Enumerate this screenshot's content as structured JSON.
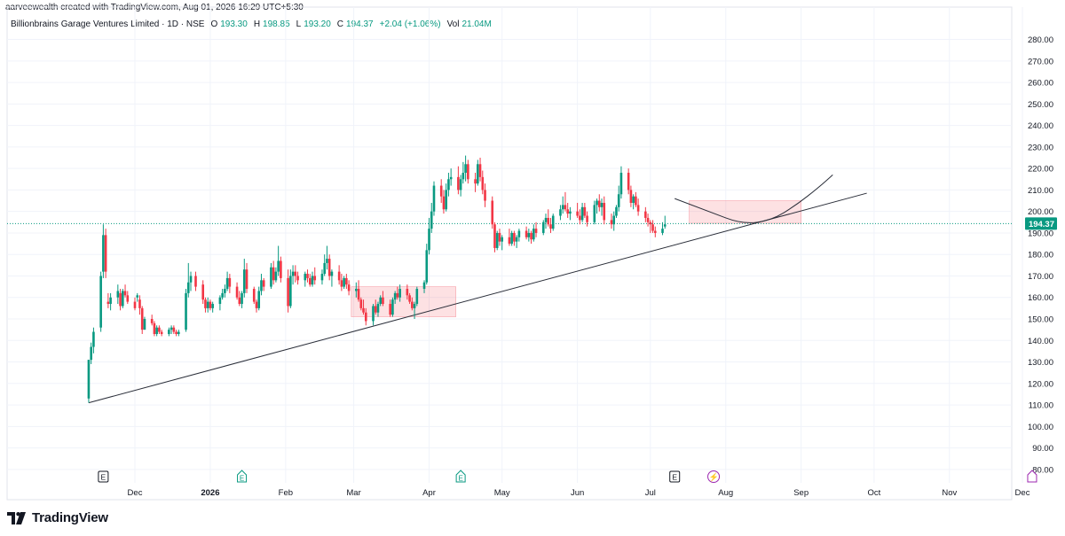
{
  "header": {
    "attribution": "aarveewealth created with TradingView.com, Aug 01, 2026 16:29 UTC+5:30"
  },
  "legend": {
    "symbol": "Billionbrains Garage Ventures Limited · 1D · NSE",
    "open_label": "O",
    "open_value": "193.30",
    "high_label": "H",
    "high_value": "198.85",
    "low_label": "L",
    "low_value": "193.20",
    "close_label": "C",
    "close_value": "194.37",
    "change": "+2.04 (+1.06%)",
    "vol_label": "Vol",
    "vol_value": "21.04M"
  },
  "brand": {
    "name": "TradingView"
  },
  "colors": {
    "up": "#089981",
    "down": "#f23645",
    "grid": "#f0f3fa",
    "zone": "rgba(242,54,69,0.15)",
    "zone_border": "#f7a1aa",
    "price_line": "#089981",
    "event": "#089981",
    "earnings": "#131722",
    "dividend": "#9c27b0"
  },
  "chart_data": {
    "type": "candlestick",
    "y_ticks": [
      "280.00",
      "270.00",
      "260.00",
      "250.00",
      "240.00",
      "230.00",
      "220.00",
      "210.00",
      "200.00",
      "190.00",
      "180.00",
      "170.00",
      "160.00",
      "150.00",
      "140.00",
      "130.00",
      "120.00",
      "110.00",
      "100.00",
      "90.00",
      "80.00"
    ],
    "ylim": [
      75,
      286
    ],
    "x_ticks": [
      {
        "label": "Dec",
        "date": "2025-12-01"
      },
      {
        "label": "2026",
        "date": "2026-01-01"
      },
      {
        "label": "Feb",
        "date": "2026-02-01"
      },
      {
        "label": "Mar",
        "date": "2026-03-01"
      },
      {
        "label": "Apr",
        "date": "2026-04-01"
      },
      {
        "label": "May",
        "date": "2026-05-01"
      },
      {
        "label": "Jun",
        "date": "2026-06-01"
      },
      {
        "label": "Jul",
        "date": "2026-07-01"
      },
      {
        "label": "Aug",
        "date": "2026-08-01"
      },
      {
        "label": "Sep",
        "date": "2026-09-01"
      },
      {
        "label": "Oct",
        "date": "2026-10-01"
      },
      {
        "label": "Nov",
        "date": "2026-11-01"
      },
      {
        "label": "Dec",
        "date": "2026-12-01"
      }
    ],
    "last_price": "194.37",
    "candles": [
      [
        "2025-11-12",
        113,
        131,
        111,
        131
      ],
      [
        "2025-11-13",
        131,
        139,
        129,
        137
      ],
      [
        "2025-11-14",
        137,
        146,
        134,
        144
      ],
      [
        "2025-11-17",
        146,
        172,
        144,
        170
      ],
      [
        "2025-11-18",
        172,
        194,
        169,
        189
      ],
      [
        "2025-11-19",
        189,
        192,
        169,
        172
      ],
      [
        "2025-11-20",
        158,
        162,
        155,
        157
      ],
      [
        "2025-11-21",
        157,
        162,
        154,
        160
      ],
      [
        "2025-11-24",
        160,
        166,
        157,
        163
      ],
      [
        "2025-11-25",
        162,
        164,
        154,
        156
      ],
      [
        "2025-11-26",
        156,
        164,
        155,
        163
      ],
      [
        "2025-11-27",
        163,
        166,
        160,
        161
      ],
      [
        "2025-11-28",
        161,
        163,
        157,
        158
      ],
      [
        "2025-12-01",
        158,
        160,
        154,
        155
      ],
      [
        "2025-12-02",
        160,
        162,
        158,
        161
      ],
      [
        "2025-12-03",
        159,
        161,
        152,
        155
      ],
      [
        "2025-12-04",
        155,
        156,
        143,
        145
      ],
      [
        "2025-12-05",
        145,
        151,
        145,
        150
      ],
      [
        "2025-12-08",
        150,
        152,
        147,
        148
      ],
      [
        "2025-12-09",
        148,
        149,
        142,
        143
      ],
      [
        "2025-12-10",
        143,
        147,
        142,
        146
      ],
      [
        "2025-12-11",
        146,
        147,
        143,
        144
      ],
      [
        "2025-12-12",
        144,
        145,
        142,
        143
      ],
      [
        "2025-12-15",
        143,
        146,
        142,
        145
      ],
      [
        "2025-12-16",
        145,
        147,
        143,
        146
      ],
      [
        "2025-12-17",
        146,
        147,
        143,
        144
      ],
      [
        "2025-12-18",
        144,
        145,
        142,
        143
      ],
      [
        "2025-12-19",
        143,
        145,
        142,
        144
      ],
      [
        "2025-12-22",
        145,
        164,
        144,
        162
      ],
      [
        "2025-12-23",
        162,
        176,
        160,
        167
      ],
      [
        "2025-12-24",
        167,
        172,
        163,
        170
      ],
      [
        "2025-12-26",
        170,
        172,
        163,
        165
      ],
      [
        "2025-12-29",
        166,
        168,
        157,
        159
      ],
      [
        "2025-12-30",
        159,
        160,
        153,
        155
      ],
      [
        "2025-12-31",
        155,
        160,
        153,
        158
      ],
      [
        "2026-01-01",
        158,
        159,
        154,
        155
      ],
      [
        "2026-01-02",
        155,
        158,
        153,
        157
      ],
      [
        "2026-01-05",
        157,
        161,
        154,
        160
      ],
      [
        "2026-01-06",
        160,
        164,
        159,
        162
      ],
      [
        "2026-01-07",
        162,
        166,
        160,
        164
      ],
      [
        "2026-01-08",
        164,
        172,
        163,
        169
      ],
      [
        "2026-01-09",
        169,
        171,
        162,
        165
      ],
      [
        "2026-01-12",
        165,
        167,
        159,
        160
      ],
      [
        "2026-01-13",
        160,
        163,
        156,
        157
      ],
      [
        "2026-01-14",
        157,
        163,
        155,
        162
      ],
      [
        "2026-01-15",
        162,
        178,
        160,
        173
      ],
      [
        "2026-01-16",
        173,
        176,
        162,
        164
      ],
      [
        "2026-01-19",
        164,
        165,
        157,
        158
      ],
      [
        "2026-01-20",
        158,
        159,
        153,
        155
      ],
      [
        "2026-01-21",
        155,
        165,
        154,
        163
      ],
      [
        "2026-01-22",
        163,
        171,
        161,
        168
      ],
      [
        "2026-01-23",
        168,
        169,
        163,
        165
      ],
      [
        "2026-01-26",
        165,
        176,
        164,
        174
      ],
      [
        "2026-01-27",
        174,
        177,
        166,
        168
      ],
      [
        "2026-01-28",
        168,
        174,
        167,
        172
      ],
      [
        "2026-01-29",
        172,
        184,
        170,
        177
      ],
      [
        "2026-01-30",
        177,
        179,
        167,
        169
      ],
      [
        "2026-02-02",
        169,
        173,
        153,
        156
      ],
      [
        "2026-02-03",
        156,
        173,
        155,
        170
      ],
      [
        "2026-02-04",
        170,
        175,
        166,
        172
      ],
      [
        "2026-02-05",
        172,
        175,
        167,
        170
      ],
      [
        "2026-02-06",
        170,
        172,
        166,
        168
      ],
      [
        "2026-02-09",
        168,
        172,
        165,
        171
      ],
      [
        "2026-02-10",
        171,
        173,
        167,
        169
      ],
      [
        "2026-02-11",
        169,
        171,
        165,
        166
      ],
      [
        "2026-02-12",
        166,
        172,
        165,
        170
      ],
      [
        "2026-02-13",
        170,
        174,
        166,
        168
      ],
      [
        "2026-02-16",
        168,
        173,
        166,
        171
      ],
      [
        "2026-02-17",
        171,
        180,
        170,
        176
      ],
      [
        "2026-02-18",
        176,
        184,
        173,
        178
      ],
      [
        "2026-02-19",
        178,
        180,
        168,
        170
      ],
      [
        "2026-02-20",
        170,
        173,
        165,
        172
      ],
      [
        "2026-02-23",
        172,
        175,
        166,
        168
      ],
      [
        "2026-02-24",
        168,
        171,
        163,
        165
      ],
      [
        "2026-02-25",
        165,
        170,
        164,
        169
      ],
      [
        "2026-02-26",
        169,
        171,
        164,
        166
      ],
      [
        "2026-02-27",
        166,
        168,
        161,
        163
      ],
      [
        "2026-03-02",
        163,
        167,
        160,
        164
      ],
      [
        "2026-03-03",
        164,
        168,
        158,
        159
      ],
      [
        "2026-03-04",
        159,
        160,
        154,
        155
      ],
      [
        "2026-03-05",
        155,
        159,
        152,
        153
      ],
      [
        "2026-03-06",
        153,
        155,
        147,
        149
      ],
      [
        "2026-03-09",
        149,
        157,
        147,
        156
      ],
      [
        "2026-03-10",
        156,
        159,
        152,
        153
      ],
      [
        "2026-03-11",
        153,
        158,
        151,
        157
      ],
      [
        "2026-03-12",
        157,
        161,
        156,
        160
      ],
      [
        "2026-03-13",
        160,
        163,
        156,
        157
      ],
      [
        "2026-03-16",
        157,
        159,
        151,
        152
      ],
      [
        "2026-03-17",
        152,
        160,
        151,
        159
      ],
      [
        "2026-03-18",
        159,
        163,
        157,
        162
      ],
      [
        "2026-03-19",
        162,
        165,
        159,
        160
      ],
      [
        "2026-03-20",
        160,
        166,
        158,
        164
      ],
      [
        "2026-03-23",
        164,
        166,
        159,
        161
      ],
      [
        "2026-03-24",
        161,
        162,
        157,
        158
      ],
      [
        "2026-03-25",
        158,
        160,
        154,
        155
      ],
      [
        "2026-03-26",
        155,
        158,
        150,
        157
      ],
      [
        "2026-03-27",
        157,
        165,
        156,
        164
      ],
      [
        "2026-03-30",
        164,
        168,
        162,
        167
      ],
      [
        "2026-03-31",
        167,
        185,
        166,
        182
      ],
      [
        "2026-04-01",
        182,
        197,
        180,
        192
      ],
      [
        "2026-04-02",
        192,
        204,
        190,
        200
      ],
      [
        "2026-04-03",
        200,
        214,
        198,
        212
      ],
      [
        "2026-04-06",
        212,
        215,
        204,
        207
      ],
      [
        "2026-04-07",
        207,
        210,
        199,
        201
      ],
      [
        "2026-04-08",
        201,
        213,
        200,
        210
      ],
      [
        "2026-04-09",
        210,
        218,
        207,
        215
      ],
      [
        "2026-04-10",
        215,
        220,
        212,
        216
      ],
      [
        "2026-04-13",
        216,
        221,
        208,
        210
      ],
      [
        "2026-04-14",
        210,
        217,
        207,
        215
      ],
      [
        "2026-04-15",
        215,
        223,
        213,
        218
      ],
      [
        "2026-04-16",
        218,
        226,
        214,
        222
      ],
      [
        "2026-04-17",
        222,
        224,
        213,
        215
      ],
      [
        "2026-04-20",
        215,
        218,
        209,
        213
      ],
      [
        "2026-04-21",
        213,
        224,
        212,
        222
      ],
      [
        "2026-04-22",
        222,
        225,
        214,
        216
      ],
      [
        "2026-04-23",
        216,
        219,
        208,
        210
      ],
      [
        "2026-04-24",
        210,
        213,
        202,
        205
      ],
      [
        "2026-04-27",
        205,
        207,
        192,
        194
      ],
      [
        "2026-04-28",
        194,
        195,
        181,
        183
      ],
      [
        "2026-04-29",
        183,
        191,
        182,
        190
      ],
      [
        "2026-04-30",
        190,
        192,
        184,
        186
      ],
      [
        "2026-05-01",
        186,
        189,
        182,
        188
      ],
      [
        "2026-05-04",
        188,
        192,
        184,
        185
      ],
      [
        "2026-05-05",
        185,
        191,
        184,
        190
      ],
      [
        "2026-05-06",
        190,
        191,
        184,
        186
      ],
      [
        "2026-05-07",
        186,
        189,
        183,
        188
      ],
      [
        "2026-05-08",
        188,
        192,
        186,
        191
      ],
      [
        "2026-05-11",
        191,
        193,
        187,
        188
      ],
      [
        "2026-05-12",
        188,
        192,
        186,
        190
      ],
      [
        "2026-05-13",
        190,
        191,
        185,
        187
      ],
      [
        "2026-05-14",
        187,
        194,
        186,
        192
      ],
      [
        "2026-05-15",
        192,
        195,
        188,
        190
      ],
      [
        "2026-05-18",
        190,
        196,
        189,
        195
      ],
      [
        "2026-05-19",
        195,
        199,
        192,
        197
      ],
      [
        "2026-05-20",
        197,
        201,
        193,
        194
      ],
      [
        "2026-05-21",
        194,
        197,
        190,
        192
      ],
      [
        "2026-05-22",
        192,
        199,
        191,
        198
      ],
      [
        "2026-05-25",
        198,
        203,
        196,
        201
      ],
      [
        "2026-05-26",
        201,
        207,
        199,
        203
      ],
      [
        "2026-05-27",
        203,
        209,
        200,
        201
      ],
      [
        "2026-05-28",
        201,
        204,
        197,
        199
      ],
      [
        "2026-05-29",
        199,
        202,
        196,
        200
      ],
      [
        "2026-06-01",
        200,
        204,
        197,
        198
      ],
      [
        "2026-06-02",
        198,
        201,
        194,
        196
      ],
      [
        "2026-06-03",
        196,
        204,
        195,
        202
      ],
      [
        "2026-06-04",
        202,
        204,
        197,
        198
      ],
      [
        "2026-06-05",
        198,
        200,
        193,
        195
      ],
      [
        "2026-06-08",
        195,
        205,
        194,
        203
      ],
      [
        "2026-06-09",
        203,
        206,
        199,
        205
      ],
      [
        "2026-06-10",
        205,
        208,
        200,
        202
      ],
      [
        "2026-06-11",
        202,
        206,
        198,
        204
      ],
      [
        "2026-06-12",
        204,
        207,
        194,
        196
      ],
      [
        "2026-06-15",
        196,
        199,
        192,
        194
      ],
      [
        "2026-06-16",
        194,
        200,
        191,
        198
      ],
      [
        "2026-06-17",
        198,
        203,
        197,
        202
      ],
      [
        "2026-06-18",
        202,
        212,
        200,
        208
      ],
      [
        "2026-06-19",
        208,
        221,
        206,
        218
      ],
      [
        "2026-06-22",
        218,
        220,
        208,
        210
      ],
      [
        "2026-06-23",
        210,
        212,
        202,
        204
      ],
      [
        "2026-06-24",
        204,
        208,
        201,
        207
      ],
      [
        "2026-06-25",
        207,
        209,
        202,
        203
      ],
      [
        "2026-06-26",
        203,
        206,
        198,
        200
      ],
      [
        "2026-06-29",
        200,
        202,
        195,
        197
      ],
      [
        "2026-06-30",
        197,
        199,
        193,
        195
      ],
      [
        "2026-07-01",
        195,
        196,
        190,
        194
      ],
      [
        "2026-07-02",
        194,
        196,
        190,
        191
      ],
      [
        "2026-07-03",
        191,
        193,
        188,
        190
      ],
      [
        "2026-07-06",
        190,
        195,
        189,
        192
      ],
      [
        "2026-07-07",
        193,
        198,
        192,
        194
      ]
    ],
    "trendline": {
      "start": [
        "2025-11-12",
        111
      ],
      "end": [
        "2026-09-28",
        208.5
      ]
    },
    "zones": [
      {
        "from": "2026-02-28",
        "to": "2026-04-12",
        "top": 165,
        "bottom": 151
      },
      {
        "from": "2026-07-17",
        "to": "2026-09-01",
        "top": 205,
        "bottom": 194.5
      }
    ],
    "arc": [
      [
        "2026-07-11",
        206
      ],
      [
        "2026-07-25",
        200
      ],
      [
        "2026-08-08",
        194
      ],
      [
        "2026-08-20",
        196
      ],
      [
        "2026-08-30",
        203
      ],
      [
        "2026-09-08",
        211
      ],
      [
        "2026-09-14",
        217
      ]
    ],
    "events": [
      {
        "date": "2025-11-18",
        "kind": "earnings",
        "label": "E"
      },
      {
        "date": "2026-01-14",
        "kind": "dividend-up",
        "label": "E"
      },
      {
        "date": "2026-04-14",
        "kind": "dividend-up",
        "label": "E"
      },
      {
        "date": "2026-07-11",
        "kind": "earnings",
        "label": "E"
      },
      {
        "date": "2026-07-27",
        "kind": "flash",
        "label": "⚡"
      },
      {
        "date": "2026-12-05",
        "kind": "dividend-purple",
        "label": ""
      }
    ]
  }
}
